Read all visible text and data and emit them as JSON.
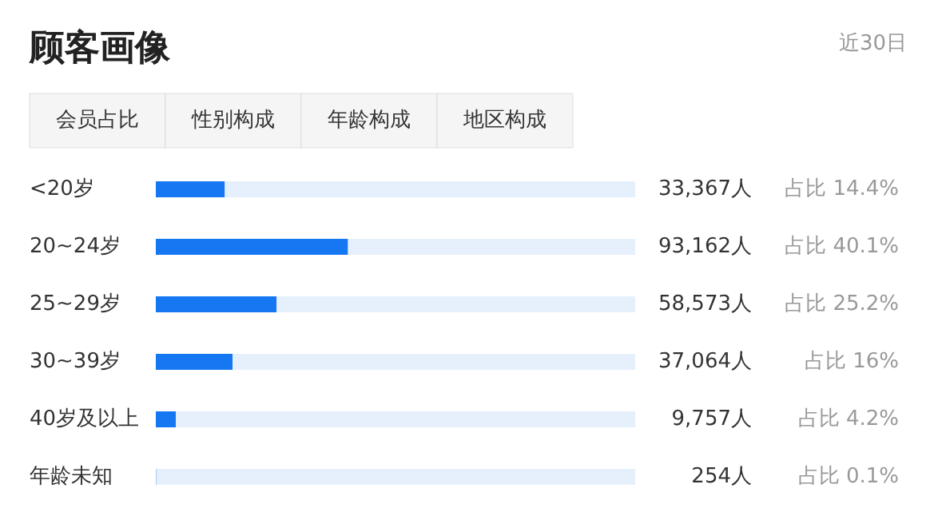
{
  "chart_data": {
    "type": "bar",
    "orientation": "horizontal",
    "stacked": true,
    "title": "顾客画像",
    "subtitle": "近30日",
    "categories": [
      "<20岁",
      "20~24岁",
      "25~29岁",
      "30~39岁",
      "40岁及以上",
      "年龄未知"
    ],
    "series": [
      {
        "color": "#1677f2",
        "values": [
          14.4,
          40.1,
          25.2,
          16,
          4.2,
          0.1
        ],
        "value_labels": [
          "占比 14.4%",
          "占比 40.1%",
          "占比 25.2%",
          "占比 16%",
          "占比 4.2%",
          "占比 0.1%"
        ]
      },
      {
        "color": "#e6f0fc",
        "values": [
          85.6,
          59.9,
          74.8,
          84,
          95.8,
          99.9
        ]
      }
    ],
    "xlim": [
      0,
      100
    ],
    "tick_labels": false,
    "grid": false,
    "annotations": [
      "会员占比",
      "性别构成",
      "年龄构成",
      "地区构成",
      "33,367人",
      "93,162人",
      "58,573人",
      "37,064人",
      "9,757人",
      "254人"
    ]
  }
}
